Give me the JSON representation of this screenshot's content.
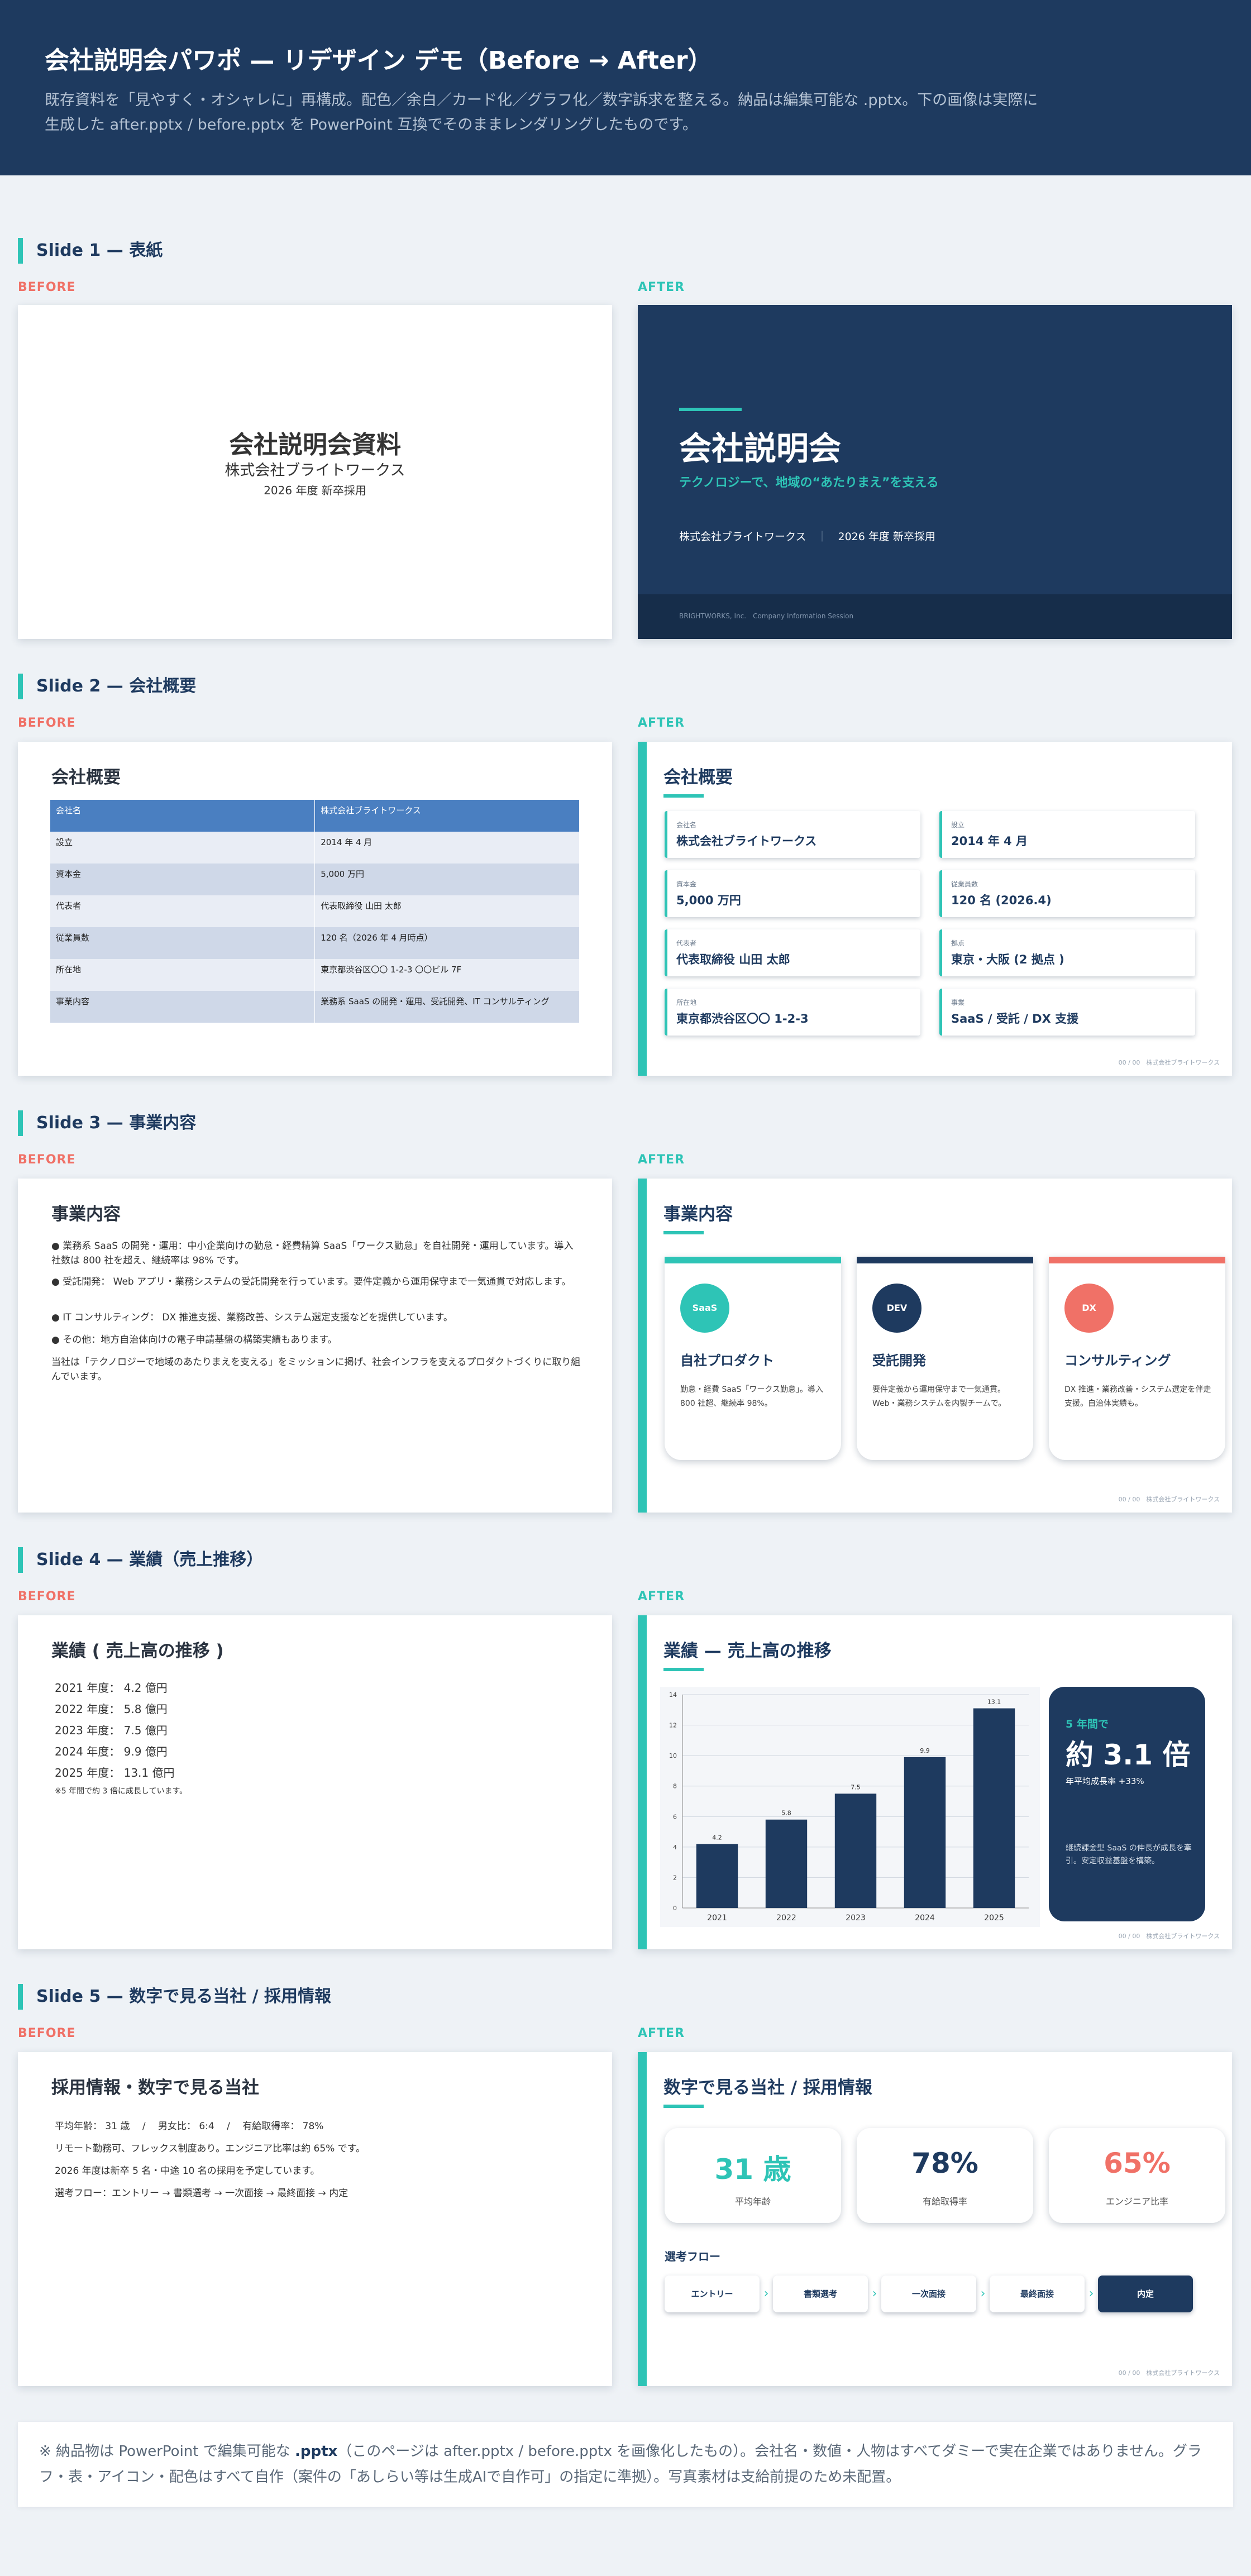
{
  "hero": {
    "title": "会社説明会パワポ — リデザイン デモ（Before → After）",
    "desc": "既存資料を「見やすく・オシャレに」再構成。配色／余白／カード化／グラフ化／数字訴求を整える。納品は編集可能な .pptx。下の画像は実際に生成した after.pptx / before.pptx を PowerPoint 互換でそのままレンダリングしたものです。"
  },
  "labels": {
    "before": "BEFORE",
    "after": "AFTER"
  },
  "footer_text": "00 / 00　株式会社ブライトワークス",
  "slide1": {
    "section": "Slide 1 — 表紙",
    "before": {
      "title": "会社説明会資料",
      "company": "株式会社ブライトワークス",
      "date": "2026 年度 新卒採用"
    },
    "after": {
      "title": "会社説明会",
      "subtitle": "テクノロジーで、地域の“あたりまえ”を支える",
      "company": "株式会社ブライトワークス",
      "sep": "｜",
      "year": "2026 年度 新卒採用",
      "footer": "BRIGHTWORKS, Inc.　Company Information Session"
    }
  },
  "slide2": {
    "section": "Slide 2 — 会社概要",
    "before": {
      "title": "会社概要",
      "header": [
        "会社名",
        "株式会社ブライトワークス"
      ],
      "rows": [
        [
          "設立",
          "2014 年 4 月"
        ],
        [
          "資本金",
          "5,000 万円"
        ],
        [
          "代表者",
          "代表取締役 山田 太郎"
        ],
        [
          "従業員数",
          "120 名（2026 年 4 月時点）"
        ],
        [
          "所在地",
          "東京都渋谷区〇〇 1-2-3 〇〇ビル 7F"
        ],
        [
          "事業内容",
          "業務系 SaaS の開発・運用、受託開発、IT コンサルティング"
        ]
      ]
    },
    "after": {
      "title": "会社概要",
      "cards": [
        {
          "k": "会社名",
          "v": "株式会社ブライトワークス"
        },
        {
          "k": "設立",
          "v": "2014 年 4 月"
        },
        {
          "k": "資本金",
          "v": "5,000 万円"
        },
        {
          "k": "従業員数",
          "v": "120 名 (2026.4)"
        },
        {
          "k": "代表者",
          "v": "代表取締役 山田 太郎"
        },
        {
          "k": "拠点",
          "v": "東京・大阪 (2 拠点 )"
        },
        {
          "k": "所在地",
          "v": "東京都渋谷区〇〇 1-2-3"
        },
        {
          "k": "事業",
          "v": "SaaS / 受託 / DX 支援"
        }
      ]
    }
  },
  "slide3": {
    "section": "Slide 3 — 事業内容",
    "before": {
      "title": "事業内容",
      "lines": [
        "● 業務系 SaaS の開発・運用：中小企業向けの勤怠・経費精算 SaaS「ワークス勤怠」を自社開発・運用しています。導入社数は 800 社を超え、継続率は 98% です。",
        "● 受託開発： Web アプリ・業務システムの受託開発を行っています。要件定義から運用保守まで一気通貫で対応します。",
        "● IT コンサルティング： DX 推進支援、業務改善、システム選定支援などを提供しています。",
        "● その他：地方自治体向けの電子申請基盤の構築実績もあります。",
        "当社は「テクノロジーで地域のあたりまえを支える」をミッションに掲げ、社会インフラを支えるプロダクトづくりに取り組んでいます。"
      ]
    },
    "after": {
      "title": "事業内容",
      "cards": [
        {
          "badge": "SaaS",
          "name": "自社プロダクト",
          "desc": "勤怠・経費 SaaS「ワークス勤怠」。導入 800 社超、継続率 98%。",
          "color": "#2ec4b6"
        },
        {
          "badge": "DEV",
          "name": "受託開発",
          "desc": "要件定義から運用保守まで一気通貫。Web・業務システムを内製チームで。",
          "color": "#1e3a5f"
        },
        {
          "badge": "DX",
          "name": "コンサルティング",
          "desc": "DX 推進・業務改善・システム選定を伴走支援。自治体実績も。",
          "color": "#f07167"
        }
      ]
    }
  },
  "slide4": {
    "section": "Slide 4 — 業績（売上推移）",
    "before": {
      "title": "業績 ( 売上高の推移 )",
      "lines": [
        "2021 年度： 4.2 億円",
        "2022 年度： 5.8 億円",
        "2023 年度： 7.5 億円",
        "2024 年度： 9.9 億円",
        "2025 年度： 13.1 億円"
      ],
      "note": "※5 年間で約 3 倍に成長しています。"
    },
    "after": {
      "title": "業績 — 売上高の推移",
      "kpi": {
        "lead": "5 年間で",
        "value": "約 3.1 倍",
        "cagr": "年平均成長率 +33%",
        "desc": "継続課金型 SaaS の伸長が成長を牽引。安定収益基盤を構築。"
      }
    }
  },
  "chart_data": {
    "type": "bar",
    "categories": [
      "2021",
      "2022",
      "2023",
      "2024",
      "2025"
    ],
    "values": [
      4.2,
      5.8,
      7.5,
      9.9,
      13.1
    ],
    "data_labels": [
      "4.2",
      "5.8",
      "7.5",
      "9.9",
      "13.1"
    ],
    "ylim": [
      0,
      14
    ],
    "yticks": [
      0,
      2,
      4,
      6,
      8,
      10,
      12,
      14
    ],
    "grid": true,
    "color": "#1e3a5f"
  },
  "slide5": {
    "section": "Slide 5 — 数字で見る当社 / 採用情報",
    "before": {
      "title": "採用情報・数字で見る当社",
      "lines": [
        "平均年齢： 31 歳　 /　 男女比： 6:4　 /　 有給取得率： 78%",
        "リモート勤務可、フレックス制度あり。エンジニア比率は約 65% です。",
        "2026 年度は新卒 5 名・中途 10 名の採用を予定しています。",
        "選考フロー：エントリー → 書類選考 → 一次面接 → 最終面接 → 内定"
      ]
    },
    "after": {
      "title": "数字で見る当社 / 採用情報",
      "stats": [
        {
          "value": "31 歳",
          "label": "平均年齢",
          "color": "#2ec4b6"
        },
        {
          "value": "78%",
          "label": "有給取得率",
          "color": "#1e3a5f"
        },
        {
          "value": "65%",
          "label": "エンジニア比率",
          "color": "#f07167"
        }
      ],
      "flow_title": "選考フロー",
      "flow": [
        "エントリー",
        "書類選考",
        "一次面接",
        "最終面接",
        "内定"
      ],
      "arrow": "›"
    }
  },
  "note": {
    "pre": "※ 納品物は PowerPoint で編集可能な ",
    "bold": ".pptx",
    "post": "（このページは after.pptx / before.pptx を画像化したもの）。会社名・数値・人物はすべてダミーで実在企業ではありません。グラフ・表・アイコン・配色はすべて自作（案件の「あしらい等は生成AIで自作可」の指定に準拠）。写真素材は支給前提のため未配置。"
  }
}
